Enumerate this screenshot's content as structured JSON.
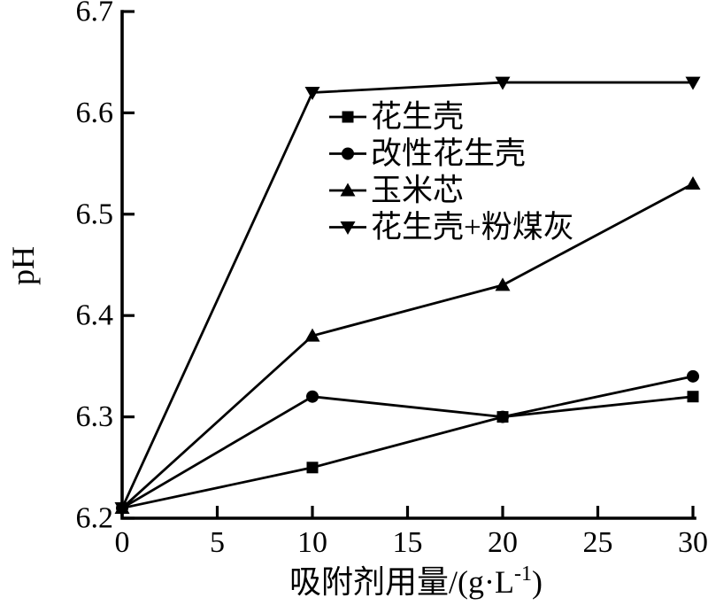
{
  "figure": {
    "background_color": "#ffffff",
    "ink_color": "#000000"
  },
  "chart_data": {
    "type": "line",
    "title": "",
    "xlabel": "吸附剂用量/(g·L⁻¹)",
    "xlabel_parts": {
      "main": "吸附剂用量/(g·L",
      "sup": "-1",
      "close": ")"
    },
    "ylabel": "pH",
    "x": [
      0,
      10,
      20,
      30
    ],
    "xlim": [
      0,
      30
    ],
    "ylim": [
      6.2,
      6.7
    ],
    "x_ticks": [
      0,
      5,
      10,
      15,
      20,
      25,
      30
    ],
    "x_tick_labels": [
      "0",
      "5",
      "10",
      "15",
      "20",
      "25",
      "30"
    ],
    "y_ticks": [
      6.2,
      6.3,
      6.4,
      6.5,
      6.6,
      6.7
    ],
    "y_tick_labels": [
      "6.2",
      "6.3",
      "6.4",
      "6.5",
      "6.6",
      "6.7"
    ],
    "grid": false,
    "legend_position": "inside-upper-left",
    "series": [
      {
        "name": "花生壳",
        "marker": "square",
        "values": [
          6.21,
          6.25,
          6.3,
          6.32
        ]
      },
      {
        "name": "改性花生壳",
        "marker": "circle",
        "values": [
          6.21,
          6.32,
          6.3,
          6.34
        ]
      },
      {
        "name": "玉米芯",
        "marker": "triangle-up",
        "values": [
          6.21,
          6.38,
          6.43,
          6.53
        ]
      },
      {
        "name": "花生壳+粉煤灰",
        "marker": "triangle-down",
        "values": [
          6.21,
          6.62,
          6.63,
          6.63
        ]
      }
    ]
  }
}
